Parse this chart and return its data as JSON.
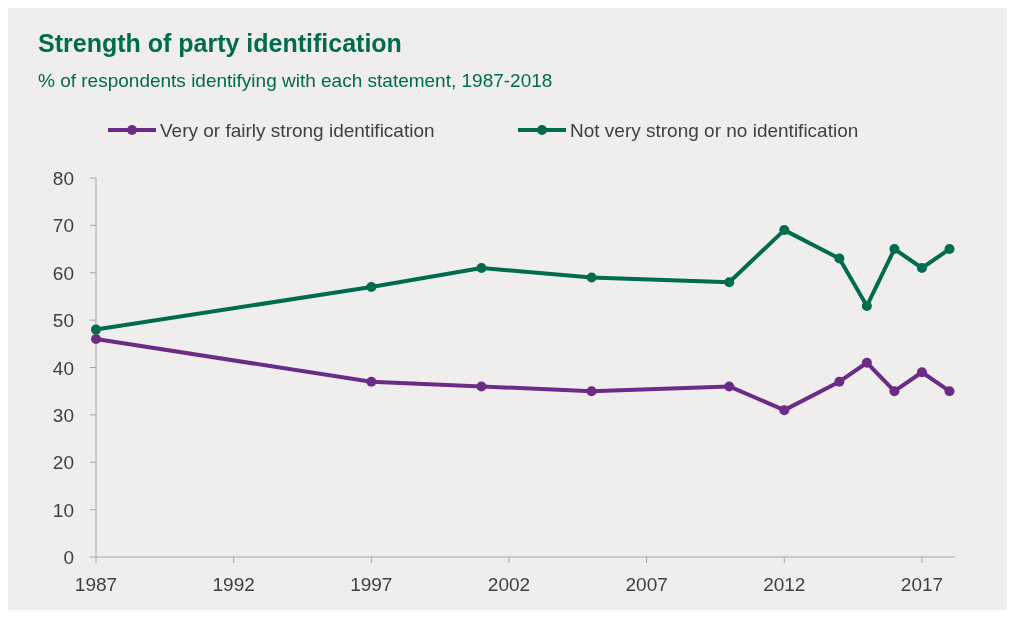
{
  "chart_data": {
    "type": "line",
    "title": "Strength of party identification",
    "subtitle": "%  of respondents identifying with each statement, 1987-2018",
    "x": [
      1987,
      1997,
      2001,
      2005,
      2010,
      2012,
      2014,
      2015,
      2016,
      2017,
      2018
    ],
    "series": [
      {
        "name": "Very or fairly strong identification",
        "color": "#6b2c86",
        "values": [
          46,
          37,
          36,
          35,
          36,
          31,
          37,
          41,
          35,
          39,
          35
        ]
      },
      {
        "name": "Not very strong or no identification",
        "color": "#006b4f",
        "values": [
          48,
          57,
          61,
          59,
          58,
          69,
          63,
          53,
          65,
          61,
          65
        ]
      }
    ],
    "xlim": [
      1987,
      2018.2
    ],
    "xticks": [
      1987,
      1992,
      1997,
      2002,
      2007,
      2012,
      2017
    ],
    "ylim": [
      0,
      80
    ],
    "yticks": [
      0,
      10,
      20,
      30,
      40,
      50,
      60,
      70,
      80
    ],
    "legend": "top",
    "marker": "circle",
    "line_style": "solid"
  }
}
